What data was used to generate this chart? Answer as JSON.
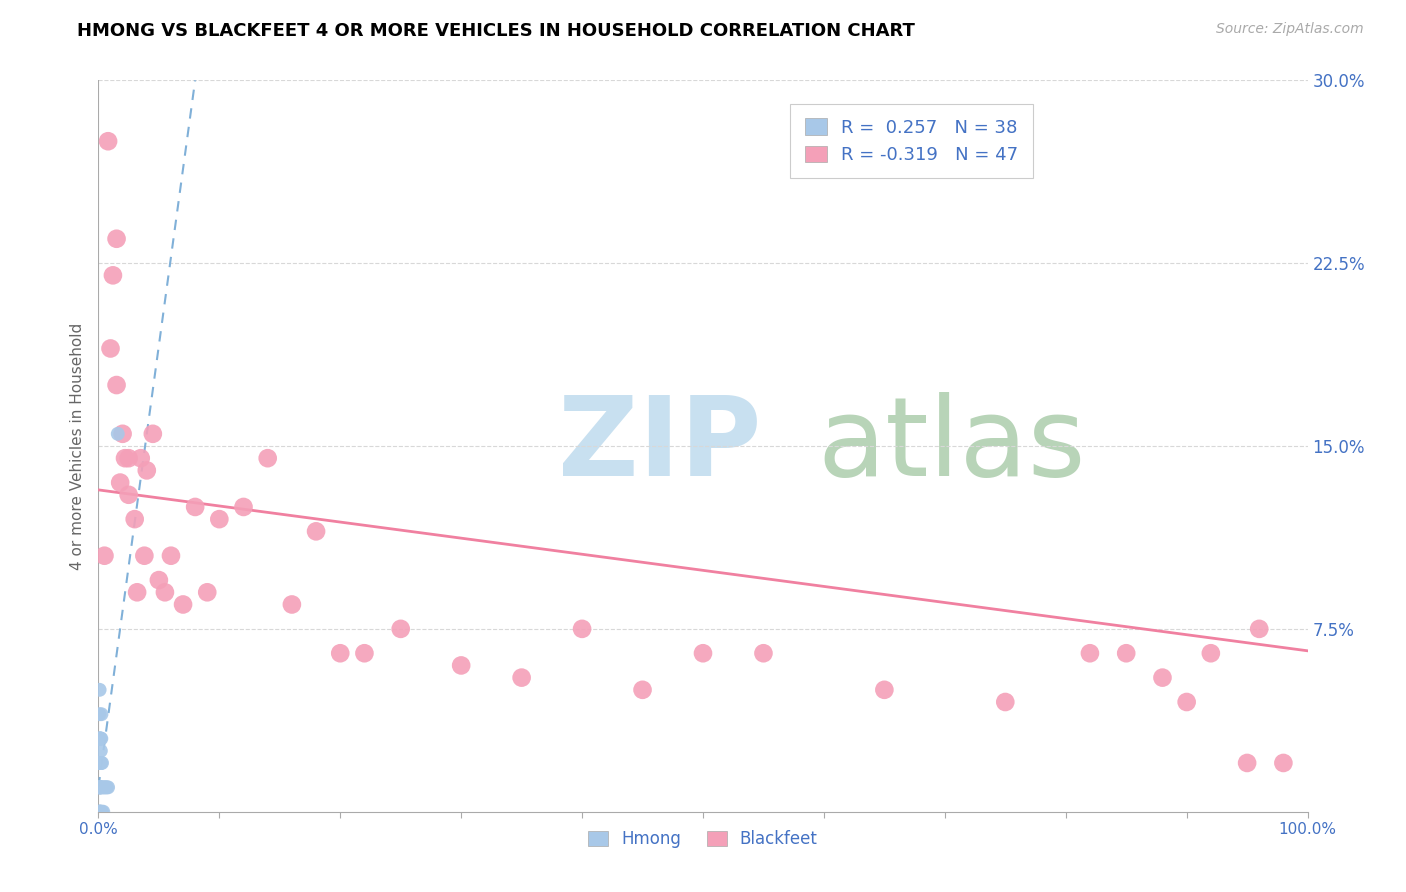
{
  "title": "HMONG VS BLACKFEET 4 OR MORE VEHICLES IN HOUSEHOLD CORRELATION CHART",
  "source": "Source: ZipAtlas.com",
  "ylabel": "4 or more Vehicles in Household",
  "xlim": [
    0.0,
    1.0
  ],
  "ylim": [
    0.0,
    0.3
  ],
  "yticks": [
    0.0,
    0.075,
    0.15,
    0.225,
    0.3
  ],
  "yticklabels_right": [
    "",
    "7.5%",
    "15.0%",
    "22.5%",
    "30.0%"
  ],
  "xtick_positions": [
    0.0,
    0.5,
    1.0
  ],
  "xticklabels": [
    "0.0%",
    "",
    "100.0%"
  ],
  "hmong_R": 0.257,
  "hmong_N": 38,
  "blackfeet_R": -0.319,
  "blackfeet_N": 47,
  "hmong_color": "#a8c8e8",
  "blackfeet_color": "#f4a0b8",
  "hmong_line_color": "#80b0d8",
  "blackfeet_line_color": "#f080a0",
  "hmong_x": [
    0.0008,
    0.0008,
    0.0008,
    0.0008,
    0.0008,
    0.001,
    0.001,
    0.001,
    0.001,
    0.001,
    0.0012,
    0.0012,
    0.0013,
    0.0013,
    0.0014,
    0.0014,
    0.0015,
    0.0015,
    0.0016,
    0.0016,
    0.0017,
    0.0018,
    0.002,
    0.002,
    0.002,
    0.0022,
    0.0024,
    0.0025,
    0.003,
    0.003,
    0.003,
    0.004,
    0.004,
    0.005,
    0.006,
    0.007,
    0.008,
    0.016
  ],
  "hmong_y": [
    0.0,
    0.01,
    0.02,
    0.03,
    0.04,
    0.0,
    0.01,
    0.02,
    0.03,
    0.05,
    0.0,
    0.01,
    0.02,
    0.03,
    0.0,
    0.01,
    0.02,
    0.03,
    0.0,
    0.01,
    0.02,
    0.03,
    0.0,
    0.01,
    0.025,
    0.02,
    0.03,
    0.04,
    0.0,
    0.01,
    0.02,
    0.0,
    0.01,
    0.01,
    0.01,
    0.01,
    0.01,
    0.155
  ],
  "blackfeet_x": [
    0.005,
    0.008,
    0.01,
    0.012,
    0.015,
    0.015,
    0.018,
    0.02,
    0.022,
    0.025,
    0.025,
    0.03,
    0.032,
    0.035,
    0.038,
    0.04,
    0.045,
    0.05,
    0.055,
    0.06,
    0.07,
    0.08,
    0.09,
    0.1,
    0.12,
    0.14,
    0.16,
    0.18,
    0.2,
    0.22,
    0.25,
    0.3,
    0.35,
    0.4,
    0.45,
    0.5,
    0.55,
    0.65,
    0.75,
    0.82,
    0.85,
    0.88,
    0.9,
    0.92,
    0.95,
    0.96,
    0.98
  ],
  "blackfeet_y": [
    0.105,
    0.275,
    0.19,
    0.22,
    0.175,
    0.235,
    0.135,
    0.155,
    0.145,
    0.145,
    0.13,
    0.12,
    0.09,
    0.145,
    0.105,
    0.14,
    0.155,
    0.095,
    0.09,
    0.105,
    0.085,
    0.125,
    0.09,
    0.12,
    0.125,
    0.145,
    0.085,
    0.115,
    0.065,
    0.065,
    0.075,
    0.06,
    0.055,
    0.075,
    0.05,
    0.065,
    0.065,
    0.05,
    0.045,
    0.065,
    0.065,
    0.055,
    0.045,
    0.065,
    0.02,
    0.075,
    0.02
  ],
  "blackfeet_line_start_x": 0.0,
  "blackfeet_line_start_y": 0.132,
  "blackfeet_line_end_x": 1.0,
  "blackfeet_line_end_y": 0.066,
  "hmong_line_start_x": 0.0,
  "hmong_line_start_y": 0.01,
  "hmong_line_end_x": 0.08,
  "hmong_line_end_y": 0.3
}
